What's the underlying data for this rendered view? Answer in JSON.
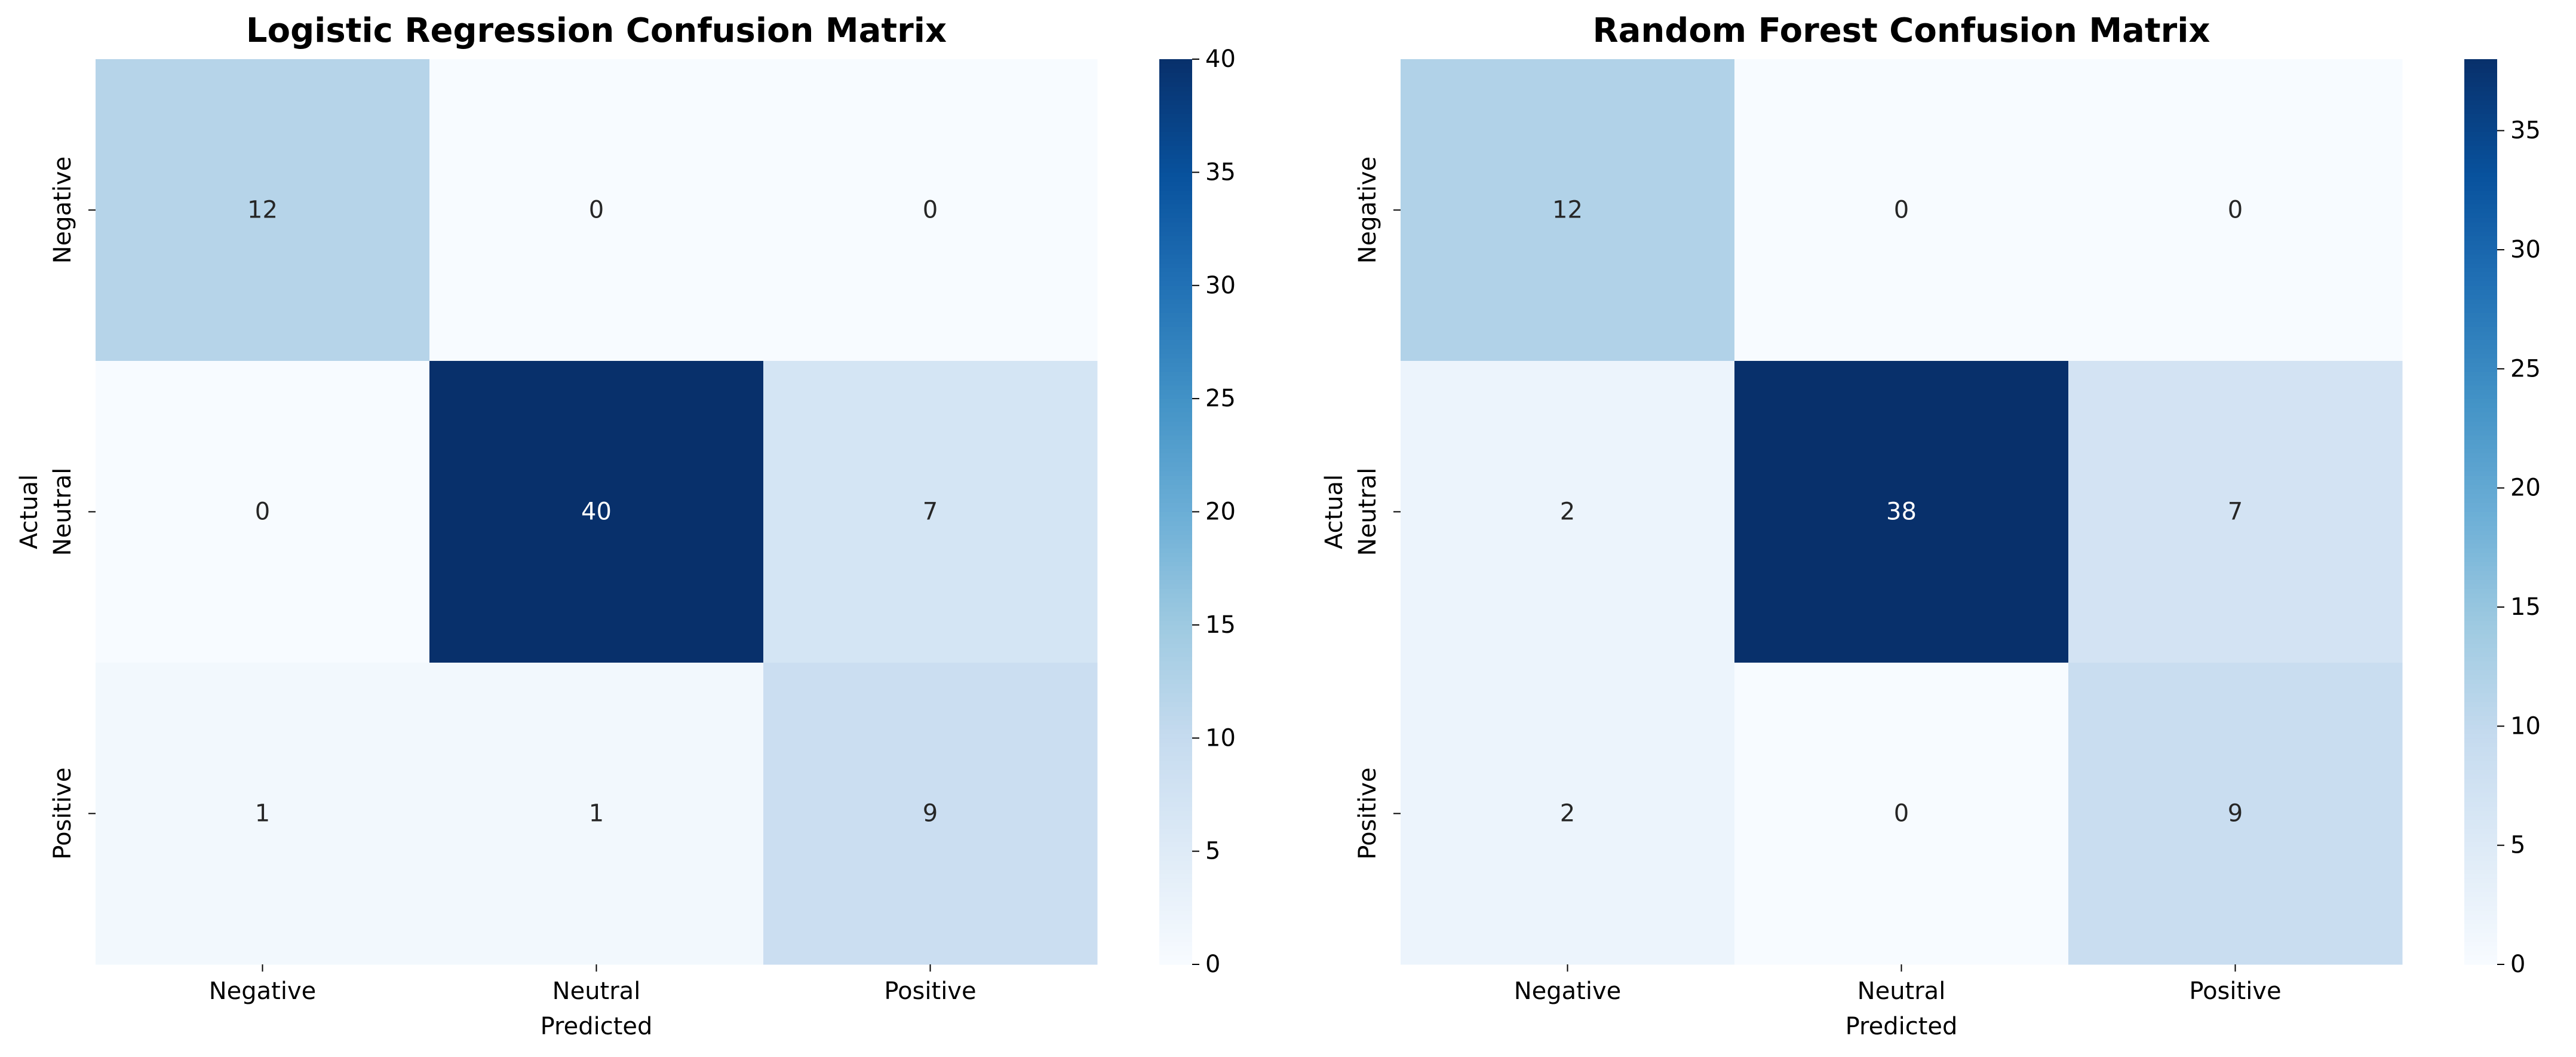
{
  "chart_data": [
    {
      "type": "heatmap",
      "title": "Logistic Regression Confusion Matrix",
      "xlabel": "Predicted",
      "ylabel": "Actual",
      "x_categories": [
        "Negative",
        "Neutral",
        "Positive"
      ],
      "y_categories": [
        "Negative",
        "Neutral",
        "Positive"
      ],
      "values": [
        [
          12,
          0,
          0
        ],
        [
          0,
          40,
          7
        ],
        [
          1,
          1,
          9
        ]
      ],
      "colormap": "Blues",
      "vmin": 0,
      "vmax": 40,
      "colorbar_ticks": [
        0,
        5,
        10,
        15,
        20,
        25,
        30,
        35,
        40
      ]
    },
    {
      "type": "heatmap",
      "title": "Random Forest Confusion Matrix",
      "xlabel": "Predicted",
      "ylabel": "Actual",
      "x_categories": [
        "Negative",
        "Neutral",
        "Positive"
      ],
      "y_categories": [
        "Negative",
        "Neutral",
        "Positive"
      ],
      "values": [
        [
          12,
          0,
          0
        ],
        [
          2,
          38,
          7
        ],
        [
          2,
          0,
          9
        ]
      ],
      "colormap": "Blues",
      "vmin": 0,
      "vmax": 38,
      "colorbar_ticks": [
        0,
        5,
        10,
        15,
        20,
        25,
        30,
        35
      ]
    }
  ],
  "colors": {
    "blues_ramp": [
      "#f7fbff",
      "#deebf7",
      "#c6dbef",
      "#9ecae1",
      "#6baed6",
      "#4292c6",
      "#2171b5",
      "#08519c",
      "#08306b"
    ],
    "text_dark": "#262626",
    "text_light": "#ffffff",
    "axis": "#000000"
  }
}
